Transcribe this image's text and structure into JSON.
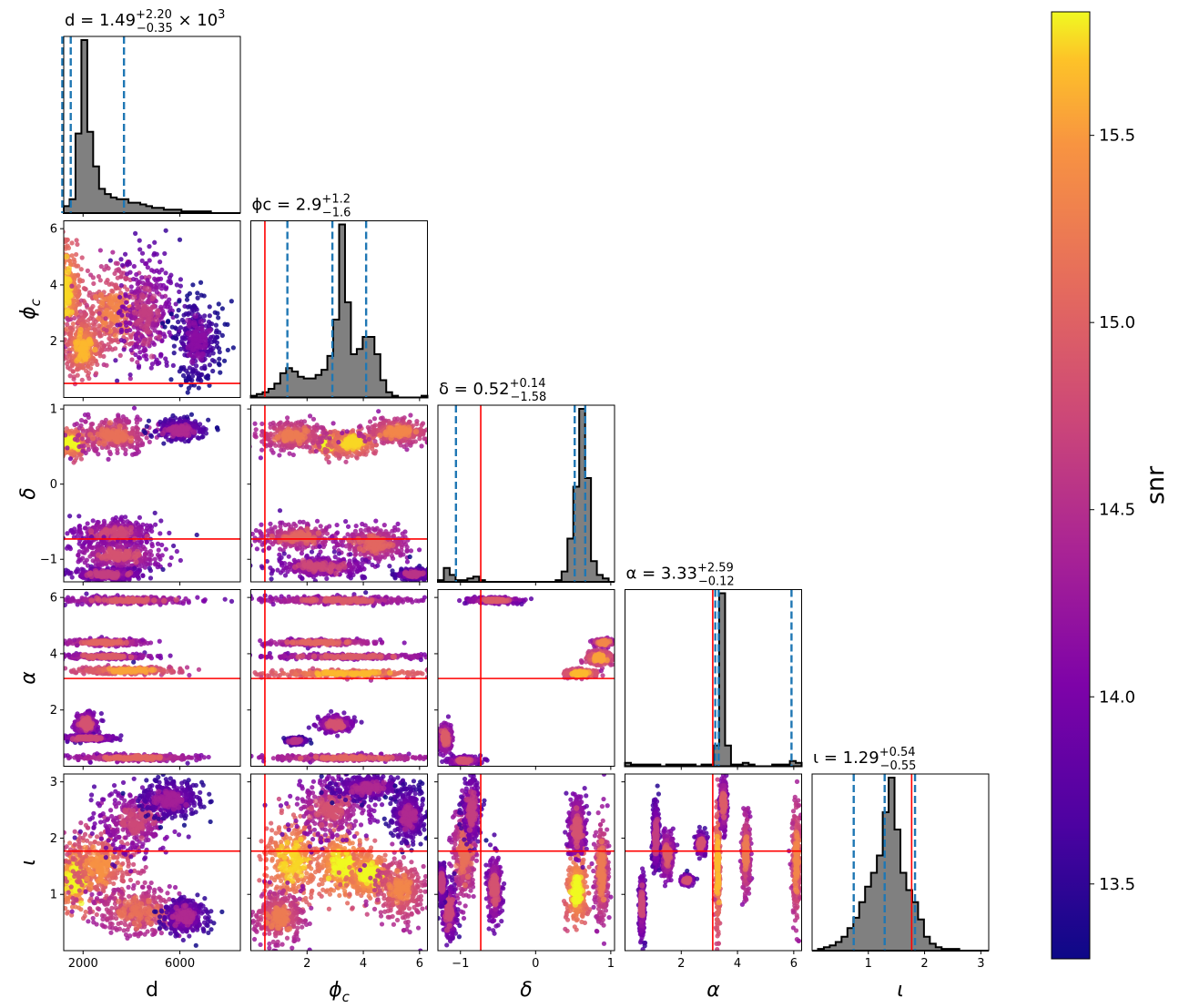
{
  "chart_data": {
    "type": "corner",
    "colorbar": {
      "label": "snr",
      "range": [
        13.3,
        15.83
      ],
      "ticks": [
        "13.5",
        "14.0",
        "14.5",
        "15.0",
        "15.5"
      ],
      "tick_values": [
        13.5,
        14.0,
        14.5,
        15.0,
        15.5
      ],
      "colormap": "plasma"
    },
    "params": [
      {
        "key": "d",
        "label": "d",
        "range": [
          1200,
          8500
        ],
        "ticks": [
          "2000",
          "6000"
        ],
        "tick_values": [
          2000,
          6000
        ],
        "truth": null,
        "title": {
          "pre": "d = 1.49",
          "sup": "+2.20",
          "sub": "−0.35",
          "post": " × 10",
          "post_sup": "3"
        },
        "quantiles": [
          1140,
          1490,
          3690
        ],
        "hist": [
          4,
          8,
          46,
          100,
          47,
          27,
          14,
          11,
          9,
          8,
          8,
          6,
          6,
          5,
          4,
          3,
          3,
          2,
          2,
          2,
          1,
          1,
          1,
          1,
          1,
          0,
          0,
          0,
          0,
          0
        ]
      },
      {
        "key": "phi_c",
        "label": "ϕc",
        "range": [
          0,
          6.28
        ],
        "ticks": [
          "2",
          "4",
          "6"
        ],
        "tick_values": [
          2,
          4,
          6
        ],
        "truth": 0.5,
        "title": {
          "pre": "ϕc = 2.9",
          "sup": "+1.2",
          "sub": "−1.6",
          "post": "",
          "post_sup": ""
        },
        "quantiles": [
          1.3,
          2.9,
          4.1
        ],
        "hist": [
          1,
          2,
          3,
          5,
          8,
          14,
          17,
          15,
          12,
          11,
          11,
          13,
          16,
          24,
          45,
          100,
          55,
          25,
          28,
          35,
          35,
          25,
          10,
          3,
          1,
          0,
          0,
          0,
          0,
          1
        ]
      },
      {
        "key": "delta",
        "label": "δ",
        "range": [
          -1.3,
          1.05
        ],
        "ticks": [
          "−1",
          "0",
          "1"
        ],
        "tick_values": [
          -1,
          0,
          1
        ],
        "truth": -0.73,
        "title": {
          "pre": "δ = 0.52",
          "sup": "+0.14",
          "sub": "−1.58",
          "post": "",
          "post_sup": ""
        },
        "quantiles": [
          -1.06,
          0.52,
          0.66
        ],
        "hist": [
          1,
          8,
          4,
          1,
          1,
          2,
          3,
          1,
          0,
          0,
          0,
          0,
          0,
          0,
          0,
          0,
          0,
          0,
          0,
          0,
          1,
          6,
          25,
          55,
          100,
          60,
          12,
          4,
          2,
          0
        ]
      },
      {
        "key": "alpha",
        "label": "α",
        "range": [
          0,
          6.28
        ],
        "ticks": [
          "2",
          "4",
          "6"
        ],
        "tick_values": [
          2,
          4,
          6
        ],
        "truth": 3.12,
        "title": {
          "pre": "α = 3.33",
          "sup": "+2.59",
          "sub": "−0.12",
          "post": "",
          "post_sup": ""
        },
        "quantiles": [
          3.21,
          3.33,
          5.92
        ],
        "hist": [
          2,
          1,
          1,
          1,
          1,
          1,
          0,
          1,
          1,
          1,
          1,
          1,
          0,
          1,
          1,
          12,
          100,
          12,
          1,
          1,
          2,
          1,
          0,
          0,
          0,
          1,
          1,
          1,
          3,
          2
        ]
      },
      {
        "key": "iota",
        "label": "ι",
        "range": [
          0,
          3.14
        ],
        "ticks": [
          "1",
          "2",
          "3"
        ],
        "tick_values": [
          1,
          2,
          3
        ],
        "truth": 1.77,
        "title": {
          "pre": "ι = 1.29",
          "sup": "+0.54",
          "sub": "−0.55",
          "post": "",
          "post_sup": ""
        },
        "quantiles": [
          0.74,
          1.29,
          1.83
        ],
        "hist": [
          0,
          1,
          2,
          3,
          5,
          8,
          13,
          19,
          28,
          37,
          45,
          55,
          80,
          100,
          70,
          45,
          35,
          28,
          18,
          8,
          4,
          2,
          1,
          1,
          1,
          0,
          0,
          0,
          0,
          0
        ]
      }
    ],
    "y_ticks": {
      "phi_c": {
        "labels": [
          "2",
          "4",
          "6"
        ],
        "values": [
          2,
          4,
          6
        ]
      },
      "delta": {
        "labels": [
          "−1",
          "0",
          "1"
        ],
        "values": [
          -1,
          0,
          1
        ]
      },
      "alpha": {
        "labels": [
          "2",
          "4",
          "6"
        ],
        "values": [
          2,
          4,
          6
        ]
      },
      "iota": {
        "labels": [
          "1",
          "2",
          "3"
        ],
        "values": [
          1,
          2,
          3
        ]
      }
    },
    "blobs": {
      "phi_c|d": [
        [
          1300,
          3.8,
          550,
          1.6,
          15.6
        ],
        [
          3200,
          3.0,
          1400,
          1.5,
          15.2
        ],
        [
          4600,
          3.0,
          1100,
          1.9,
          14.5
        ],
        [
          6700,
          2.0,
          900,
          1.4,
          14.0
        ],
        [
          2000,
          1.8,
          650,
          0.9,
          15.5
        ]
      ],
      "delta|d": [
        [
          1500,
          0.55,
          480,
          0.15,
          15.7
        ],
        [
          3200,
          0.65,
          1500,
          0.22,
          15.0
        ],
        [
          6000,
          0.72,
          900,
          0.12,
          14.3
        ],
        [
          3300,
          -0.65,
          1600,
          0.18,
          14.6
        ],
        [
          3500,
          -0.95,
          1700,
          0.18,
          14.7
        ],
        [
          3000,
          -1.2,
          1300,
          0.08,
          14.5
        ]
      ],
      "alpha|d": [
        [
          3800,
          5.9,
          2300,
          0.12,
          14.8
        ],
        [
          2900,
          4.4,
          1500,
          0.1,
          14.9
        ],
        [
          3000,
          3.9,
          1600,
          0.08,
          14.8
        ],
        [
          3800,
          3.4,
          1900,
          0.12,
          15.4
        ],
        [
          2100,
          1.5,
          420,
          0.35,
          14.7
        ],
        [
          2200,
          1.0,
          1000,
          0.09,
          14.6
        ],
        [
          4100,
          0.3,
          2200,
          0.1,
          14.9
        ]
      ],
      "iota|d": [
        [
          1700,
          1.3,
          650,
          0.5,
          15.8
        ],
        [
          2700,
          1.5,
          1400,
          0.6,
          15.3
        ],
        [
          4200,
          2.3,
          1500,
          0.5,
          14.6
        ],
        [
          5600,
          2.7,
          1200,
          0.3,
          14.2
        ],
        [
          4300,
          0.7,
          1700,
          0.4,
          15.0
        ],
        [
          6200,
          0.6,
          800,
          0.3,
          14.3
        ]
      ],
      "delta|phi_c": [
        [
          2.8,
          0.55,
          0.5,
          0.13,
          15.7
        ],
        [
          3.6,
          0.55,
          0.7,
          0.14,
          15.6
        ],
        [
          1.5,
          0.65,
          1.1,
          0.18,
          15.1
        ],
        [
          5.2,
          0.7,
          1.0,
          0.15,
          15.2
        ],
        [
          1.7,
          -0.7,
          1.3,
          0.16,
          14.9
        ],
        [
          4.4,
          -0.8,
          1.1,
          0.2,
          14.9
        ],
        [
          2.5,
          -1.1,
          1.4,
          0.12,
          14.6
        ],
        [
          5.8,
          -1.2,
          0.5,
          0.06,
          14.4
        ]
      ],
      "alpha|phi_c": [
        [
          3.2,
          5.9,
          2.6,
          0.12,
          14.8
        ],
        [
          2.5,
          4.4,
          1.8,
          0.1,
          14.9
        ],
        [
          3.5,
          3.9,
          2.5,
          0.08,
          14.8
        ],
        [
          3.3,
          3.3,
          2.7,
          0.12,
          15.5
        ],
        [
          3.0,
          1.5,
          0.5,
          0.25,
          14.7
        ],
        [
          3.4,
          0.3,
          2.6,
          0.1,
          14.9
        ],
        [
          1.6,
          0.9,
          0.3,
          0.1,
          14.4
        ]
      ],
      "iota|phi_c": [
        [
          1.5,
          1.6,
          1.1,
          0.7,
          15.6
        ],
        [
          3.3,
          1.5,
          0.8,
          0.5,
          15.8
        ],
        [
          4.2,
          1.35,
          0.6,
          0.35,
          15.8
        ],
        [
          2.8,
          2.5,
          1.3,
          0.5,
          14.7
        ],
        [
          5.3,
          1.1,
          0.8,
          0.5,
          15.2
        ],
        [
          1.0,
          0.6,
          0.8,
          0.4,
          15.1
        ],
        [
          4.2,
          2.9,
          1.2,
          0.2,
          14.3
        ],
        [
          5.6,
          2.4,
          0.5,
          0.4,
          14.3
        ]
      ],
      "alpha|delta": [
        [
          -0.55,
          5.9,
          0.28,
          0.09,
          14.8
        ],
        [
          0.6,
          3.3,
          0.18,
          0.12,
          15.5
        ],
        [
          0.85,
          3.85,
          0.15,
          0.22,
          15.4
        ],
        [
          0.9,
          4.4,
          0.1,
          0.1,
          15.2
        ],
        [
          -1.2,
          1.0,
          0.08,
          0.45,
          14.8
        ],
        [
          -0.95,
          0.2,
          0.18,
          0.12,
          14.7
        ]
      ],
      "iota|delta": [
        [
          -0.95,
          1.7,
          0.14,
          0.75,
          15.0
        ],
        [
          -0.85,
          2.5,
          0.1,
          0.5,
          14.5
        ],
        [
          -1.15,
          0.7,
          0.08,
          0.4,
          14.6
        ],
        [
          -0.55,
          1.1,
          0.08,
          0.5,
          14.7
        ],
        [
          0.55,
          1.1,
          0.12,
          0.55,
          15.7
        ],
        [
          0.55,
          2.2,
          0.1,
          0.5,
          14.7
        ],
        [
          0.88,
          1.4,
          0.08,
          0.8,
          15.1
        ],
        [
          -1.25,
          1.2,
          0.04,
          0.3,
          14.5
        ]
      ],
      "iota|alpha": [
        [
          3.3,
          1.5,
          0.08,
          1.0,
          15.5
        ],
        [
          3.5,
          2.6,
          0.1,
          0.4,
          14.8
        ],
        [
          4.3,
          1.7,
          0.12,
          0.6,
          15.1
        ],
        [
          6.1,
          1.6,
          0.14,
          0.9,
          15.2
        ],
        [
          1.5,
          1.7,
          0.2,
          0.35,
          14.8
        ],
        [
          1.1,
          2.0,
          0.1,
          0.5,
          14.5
        ],
        [
          2.7,
          1.9,
          0.15,
          0.15,
          14.7
        ],
        [
          0.6,
          0.8,
          0.08,
          0.5,
          14.6
        ],
        [
          2.2,
          1.25,
          0.18,
          0.07,
          14.7
        ]
      ]
    }
  }
}
